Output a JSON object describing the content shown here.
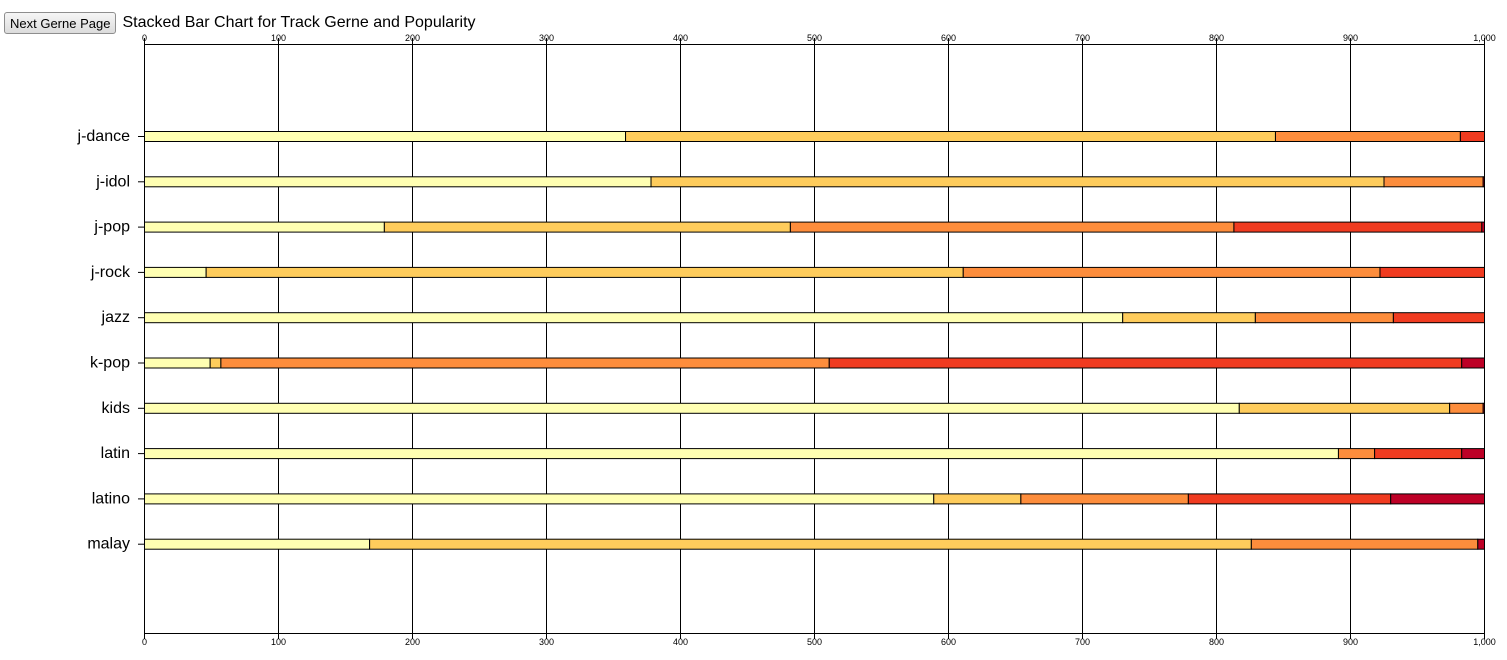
{
  "controls": {
    "next_button_label": "Next Gerne Page"
  },
  "chart_data": {
    "type": "bar",
    "orientation": "horizontal",
    "stacked": true,
    "title": "Stacked Bar Chart for Track Gerne and Popularity",
    "xlabel": "",
    "ylabel": "",
    "xlim": [
      0,
      1000
    ],
    "x_ticks": [
      "0",
      "100",
      "200",
      "300",
      "400",
      "500",
      "600",
      "700",
      "800",
      "900",
      "1,000"
    ],
    "grid": "vertical",
    "axes": [
      "top",
      "bottom"
    ],
    "categories": [
      "j-dance",
      "j-idol",
      "j-pop",
      "j-rock",
      "jazz",
      "k-pop",
      "kids",
      "latin",
      "latino",
      "malay"
    ],
    "series": [
      {
        "color": "#ffffb2",
        "values": [
          359,
          378,
          179,
          46,
          730,
          49,
          817,
          891,
          589,
          168
        ]
      },
      {
        "color": "#fecc5c",
        "values": [
          485,
          547,
          303,
          565,
          99,
          8,
          157,
          0,
          65,
          658
        ]
      },
      {
        "color": "#fd8d3c",
        "values": [
          138,
          74,
          331,
          311,
          103,
          454,
          25,
          27,
          125,
          169
        ]
      },
      {
        "color": "#f03b20",
        "values": [
          18,
          0,
          185,
          78,
          68,
          472,
          0,
          65,
          151,
          0
        ]
      },
      {
        "color": "#bd0026",
        "values": [
          0,
          1,
          2,
          0,
          0,
          17,
          1,
          17,
          70,
          5
        ]
      }
    ]
  }
}
